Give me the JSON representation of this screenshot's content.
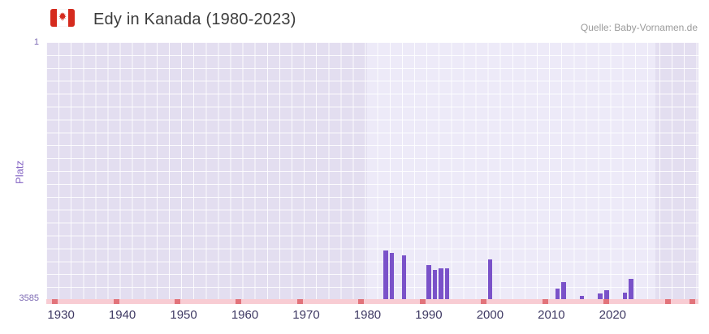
{
  "header": {
    "title": "Edy in Kanada (1980-2023)",
    "source": "Quelle: Baby-Vornamen.de",
    "flag_icon": "canada-flag"
  },
  "chart_data": {
    "type": "bar",
    "title": "Edy in Kanada (1980-2023)",
    "xlabel": "",
    "ylabel": "Platz",
    "y_axis_inverted": true,
    "y_min": 1,
    "y_max": 3585,
    "y_tick_labels": [
      "1",
      "3585"
    ],
    "x_ticks": [
      1930,
      1940,
      1950,
      1960,
      1970,
      1980,
      1990,
      2000,
      2010,
      2020
    ],
    "x_range": [
      1927.6,
      2034
    ],
    "grid": true,
    "legend": "none",
    "bar_color": "#7a52c9",
    "bar_width": 5.5,
    "plot_bg_color": "#e3def0",
    "band": {
      "from": 1980,
      "to": 2027,
      "color": "#edeaf8"
    },
    "bars": [
      {
        "year": 1983,
        "rank": 2900
      },
      {
        "year": 1984,
        "rank": 2930
      },
      {
        "year": 1986,
        "rank": 2960
      },
      {
        "year": 1990,
        "rank": 3100
      },
      {
        "year": 1991,
        "rank": 3170
      },
      {
        "year": 1992,
        "rank": 3140
      },
      {
        "year": 1993,
        "rank": 3150
      },
      {
        "year": 2000,
        "rank": 3020
      },
      {
        "year": 2011,
        "rank": 3430
      },
      {
        "year": 2012,
        "rank": 3340
      },
      {
        "year": 2015,
        "rank": 3530
      },
      {
        "year": 2018,
        "rank": 3490
      },
      {
        "year": 2019,
        "rank": 3450
      },
      {
        "year": 2022,
        "rank": 3480
      },
      {
        "year": 2023,
        "rank": 3290
      }
    ],
    "no_data_marks": [
      1929,
      1939,
      1949,
      1959,
      1969,
      1979,
      1989,
      1999,
      2009,
      2019,
      2029,
      2033
    ],
    "no_data_strip_color": "#f8ccd3",
    "no_data_mark_color": "#e2737a"
  }
}
